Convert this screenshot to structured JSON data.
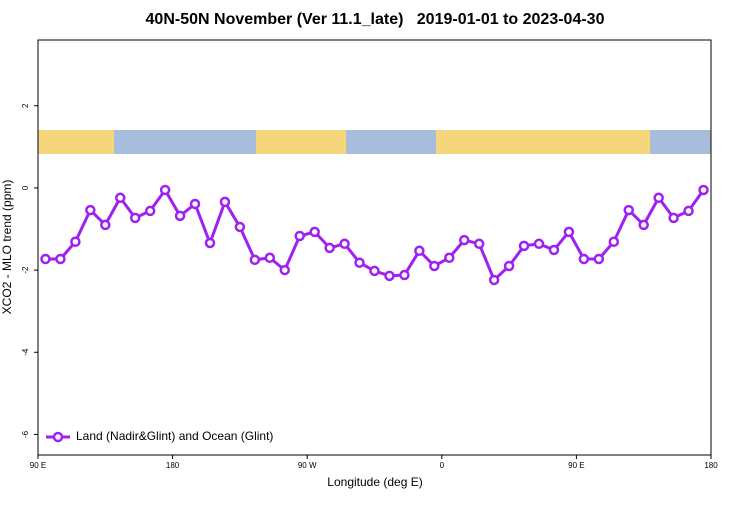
{
  "chart_data": {
    "type": "line",
    "title": "40N-50N November (Ver 11.1_late)   2019-01-01 to 2023-04-30",
    "x_label": "Longitude (deg E)",
    "y_label": "XCO2 - MLO trend (ppm)",
    "x": [
      95,
      105,
      115,
      125,
      135,
      145,
      155,
      165,
      175,
      185,
      195,
      205,
      215,
      225,
      235,
      245,
      255,
      265,
      275,
      285,
      295,
      305,
      315,
      325,
      335,
      345,
      355,
      365,
      375,
      385,
      395,
      405,
      415,
      425,
      435,
      445,
      455,
      465,
      475,
      485,
      495,
      505,
      515,
      525,
      535
    ],
    "series": [
      {
        "name": "Land (Nadir&Glint) and Ocean (Glint)",
        "color": "#a020f0",
        "values": [
          -1.73,
          -1.73,
          -1.31,
          -0.54,
          -0.9,
          -0.24,
          -0.73,
          -0.56,
          -0.05,
          -0.68,
          -0.39,
          -1.34,
          -0.34,
          -0.95,
          -1.75,
          -1.7,
          -2.0,
          -1.17,
          -1.07,
          -1.46,
          -1.36,
          -1.82,
          -2.02,
          -2.14,
          -2.12,
          -1.53,
          -1.9,
          -1.7,
          -1.27,
          -1.36,
          -2.24,
          -1.9,
          -1.41,
          -1.36,
          -1.51,
          -1.07,
          -1.73,
          -1.73,
          -1.31,
          -0.54,
          -0.9,
          -0.24,
          -0.73,
          -0.56,
          -0.05
        ]
      }
    ],
    "xlim": [
      90,
      540
    ],
    "xticks": [
      {
        "value": 90,
        "label": "90 E"
      },
      180,
      {
        "value": 270,
        "label": "90 W"
      },
      {
        "value": 360,
        "label": "0"
      },
      {
        "value": 450,
        "label": "90 E"
      },
      {
        "value": 540,
        "label": "180"
      }
    ],
    "ylim": [
      -6.5,
      3.6
    ],
    "yticks": [
      -6,
      -4,
      -2,
      0,
      2
    ],
    "legend": "bottom left"
  }
}
